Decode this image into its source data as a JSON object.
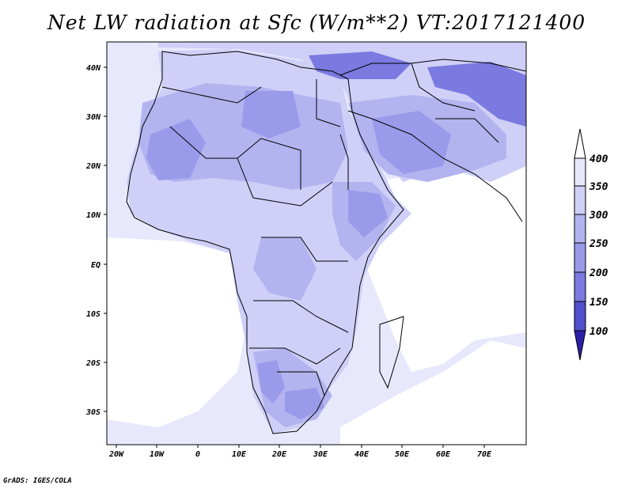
{
  "title": "Net LW radiation at Sfc (W/m**2) VT:2017121400",
  "credit": "GrADS: IGES/COLA",
  "map": {
    "x_ticks": [
      "20W",
      "10W",
      "0",
      "10E",
      "20E",
      "30E",
      "40E",
      "50E",
      "60E",
      "70E"
    ],
    "y_ticks": [
      "40N",
      "30N",
      "20N",
      "10N",
      "EQ",
      "10S",
      "20S",
      "30S"
    ]
  },
  "colorbar": {
    "labels": [
      "400",
      "350",
      "300",
      "250",
      "200",
      "150",
      "100"
    ],
    "colors": [
      "#e8e8fc",
      "#cfcff8",
      "#b3b3f0",
      "#9a9aea",
      "#7a7ae0",
      "#5050cc",
      "#2e1fa8"
    ]
  },
  "colors": {
    "ocean": "#e8e8fc",
    "open_ocean": "#ffffff",
    "land_light": "#cfcff8",
    "land_mid": "#b3b3f0",
    "land_dark": "#9a9aea",
    "land_darkest": "#7a7ae0"
  }
}
